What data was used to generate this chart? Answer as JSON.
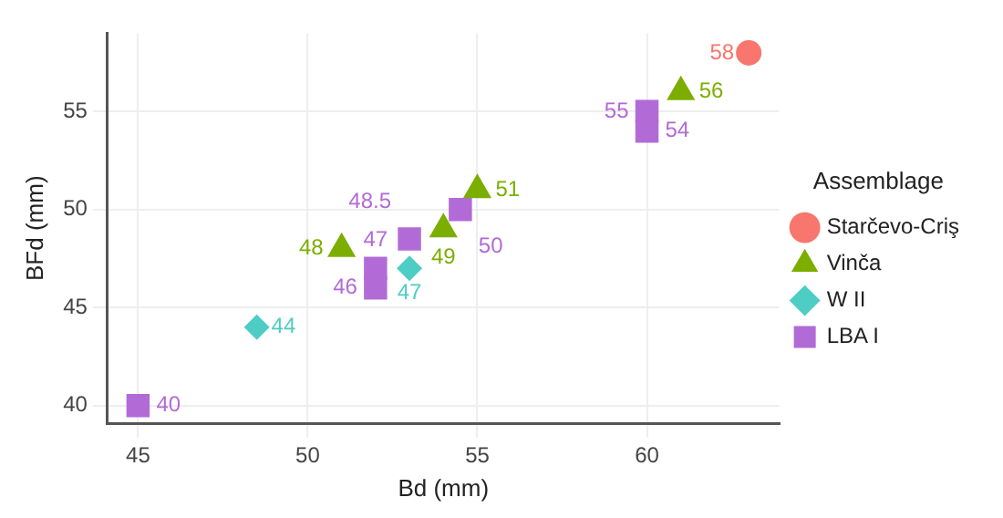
{
  "chart_data": {
    "type": "scatter",
    "xlabel": "Bd (mm)",
    "ylabel": "BFd (mm)",
    "legend_title": "Assemblage",
    "legend": "right",
    "grid": true,
    "data_labels": true,
    "xlim": [
      44.1,
      63.9
    ],
    "xticks": [
      45,
      50,
      55,
      60
    ],
    "ylim": [
      39.1,
      59
    ],
    "yticks": [
      40,
      45,
      50,
      55
    ],
    "series": [
      {
        "name": "Starčevo-Criş",
        "color": "#f8766d",
        "marker": "circle",
        "x": [
          63
        ],
        "values": [
          58
        ]
      },
      {
        "name": "Vinča",
        "color": "#7cae00",
        "marker": "triangle",
        "x": [
          61,
          55,
          54,
          51
        ],
        "values": [
          56,
          51,
          49,
          48
        ]
      },
      {
        "name": "W II",
        "color": "#4ecdc4",
        "marker": "diamond",
        "x": [
          48.5,
          53
        ],
        "values": [
          44,
          47
        ]
      },
      {
        "name": "LBA I",
        "color": "#b26bd6",
        "marker": "square",
        "x": [
          45,
          54.5,
          53,
          52,
          52,
          60,
          60
        ],
        "values": [
          40,
          50,
          48.5,
          47,
          46,
          55,
          54
        ]
      }
    ]
  }
}
